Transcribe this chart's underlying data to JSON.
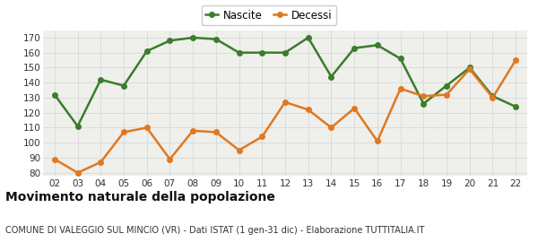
{
  "years": [
    "02",
    "03",
    "04",
    "05",
    "06",
    "07",
    "08",
    "09",
    "10",
    "11",
    "12",
    "13",
    "14",
    "15",
    "16",
    "17",
    "18",
    "19",
    "20",
    "21",
    "22"
  ],
  "nascite": [
    132,
    111,
    142,
    138,
    161,
    168,
    170,
    169,
    160,
    160,
    160,
    170,
    144,
    163,
    165,
    156,
    126,
    138,
    150,
    131,
    124
  ],
  "decessi": [
    89,
    80,
    87,
    107,
    110,
    89,
    108,
    107,
    95,
    104,
    127,
    122,
    110,
    123,
    101,
    136,
    131,
    132,
    149,
    130,
    155
  ],
  "nascite_color": "#3a7d2c",
  "decessi_color": "#e07820",
  "plot_bg_color": "#efefeb",
  "fig_bg_color": "#ffffff",
  "grid_color": "#d8d8d8",
  "ylim": [
    78,
    175
  ],
  "yticks": [
    80,
    90,
    100,
    110,
    120,
    130,
    140,
    150,
    160,
    170
  ],
  "title": "Movimento naturale della popolazione",
  "subtitle": "COMUNE DI VALEGGIO SUL MINCIO (VR) - Dati ISTAT (1 gen-31 dic) - Elaborazione TUTTITALIA.IT",
  "legend_labels": [
    "Nascite",
    "Decessi"
  ],
  "title_fontsize": 10,
  "subtitle_fontsize": 7,
  "tick_fontsize": 7.5,
  "line_width": 1.8,
  "marker_size": 5
}
